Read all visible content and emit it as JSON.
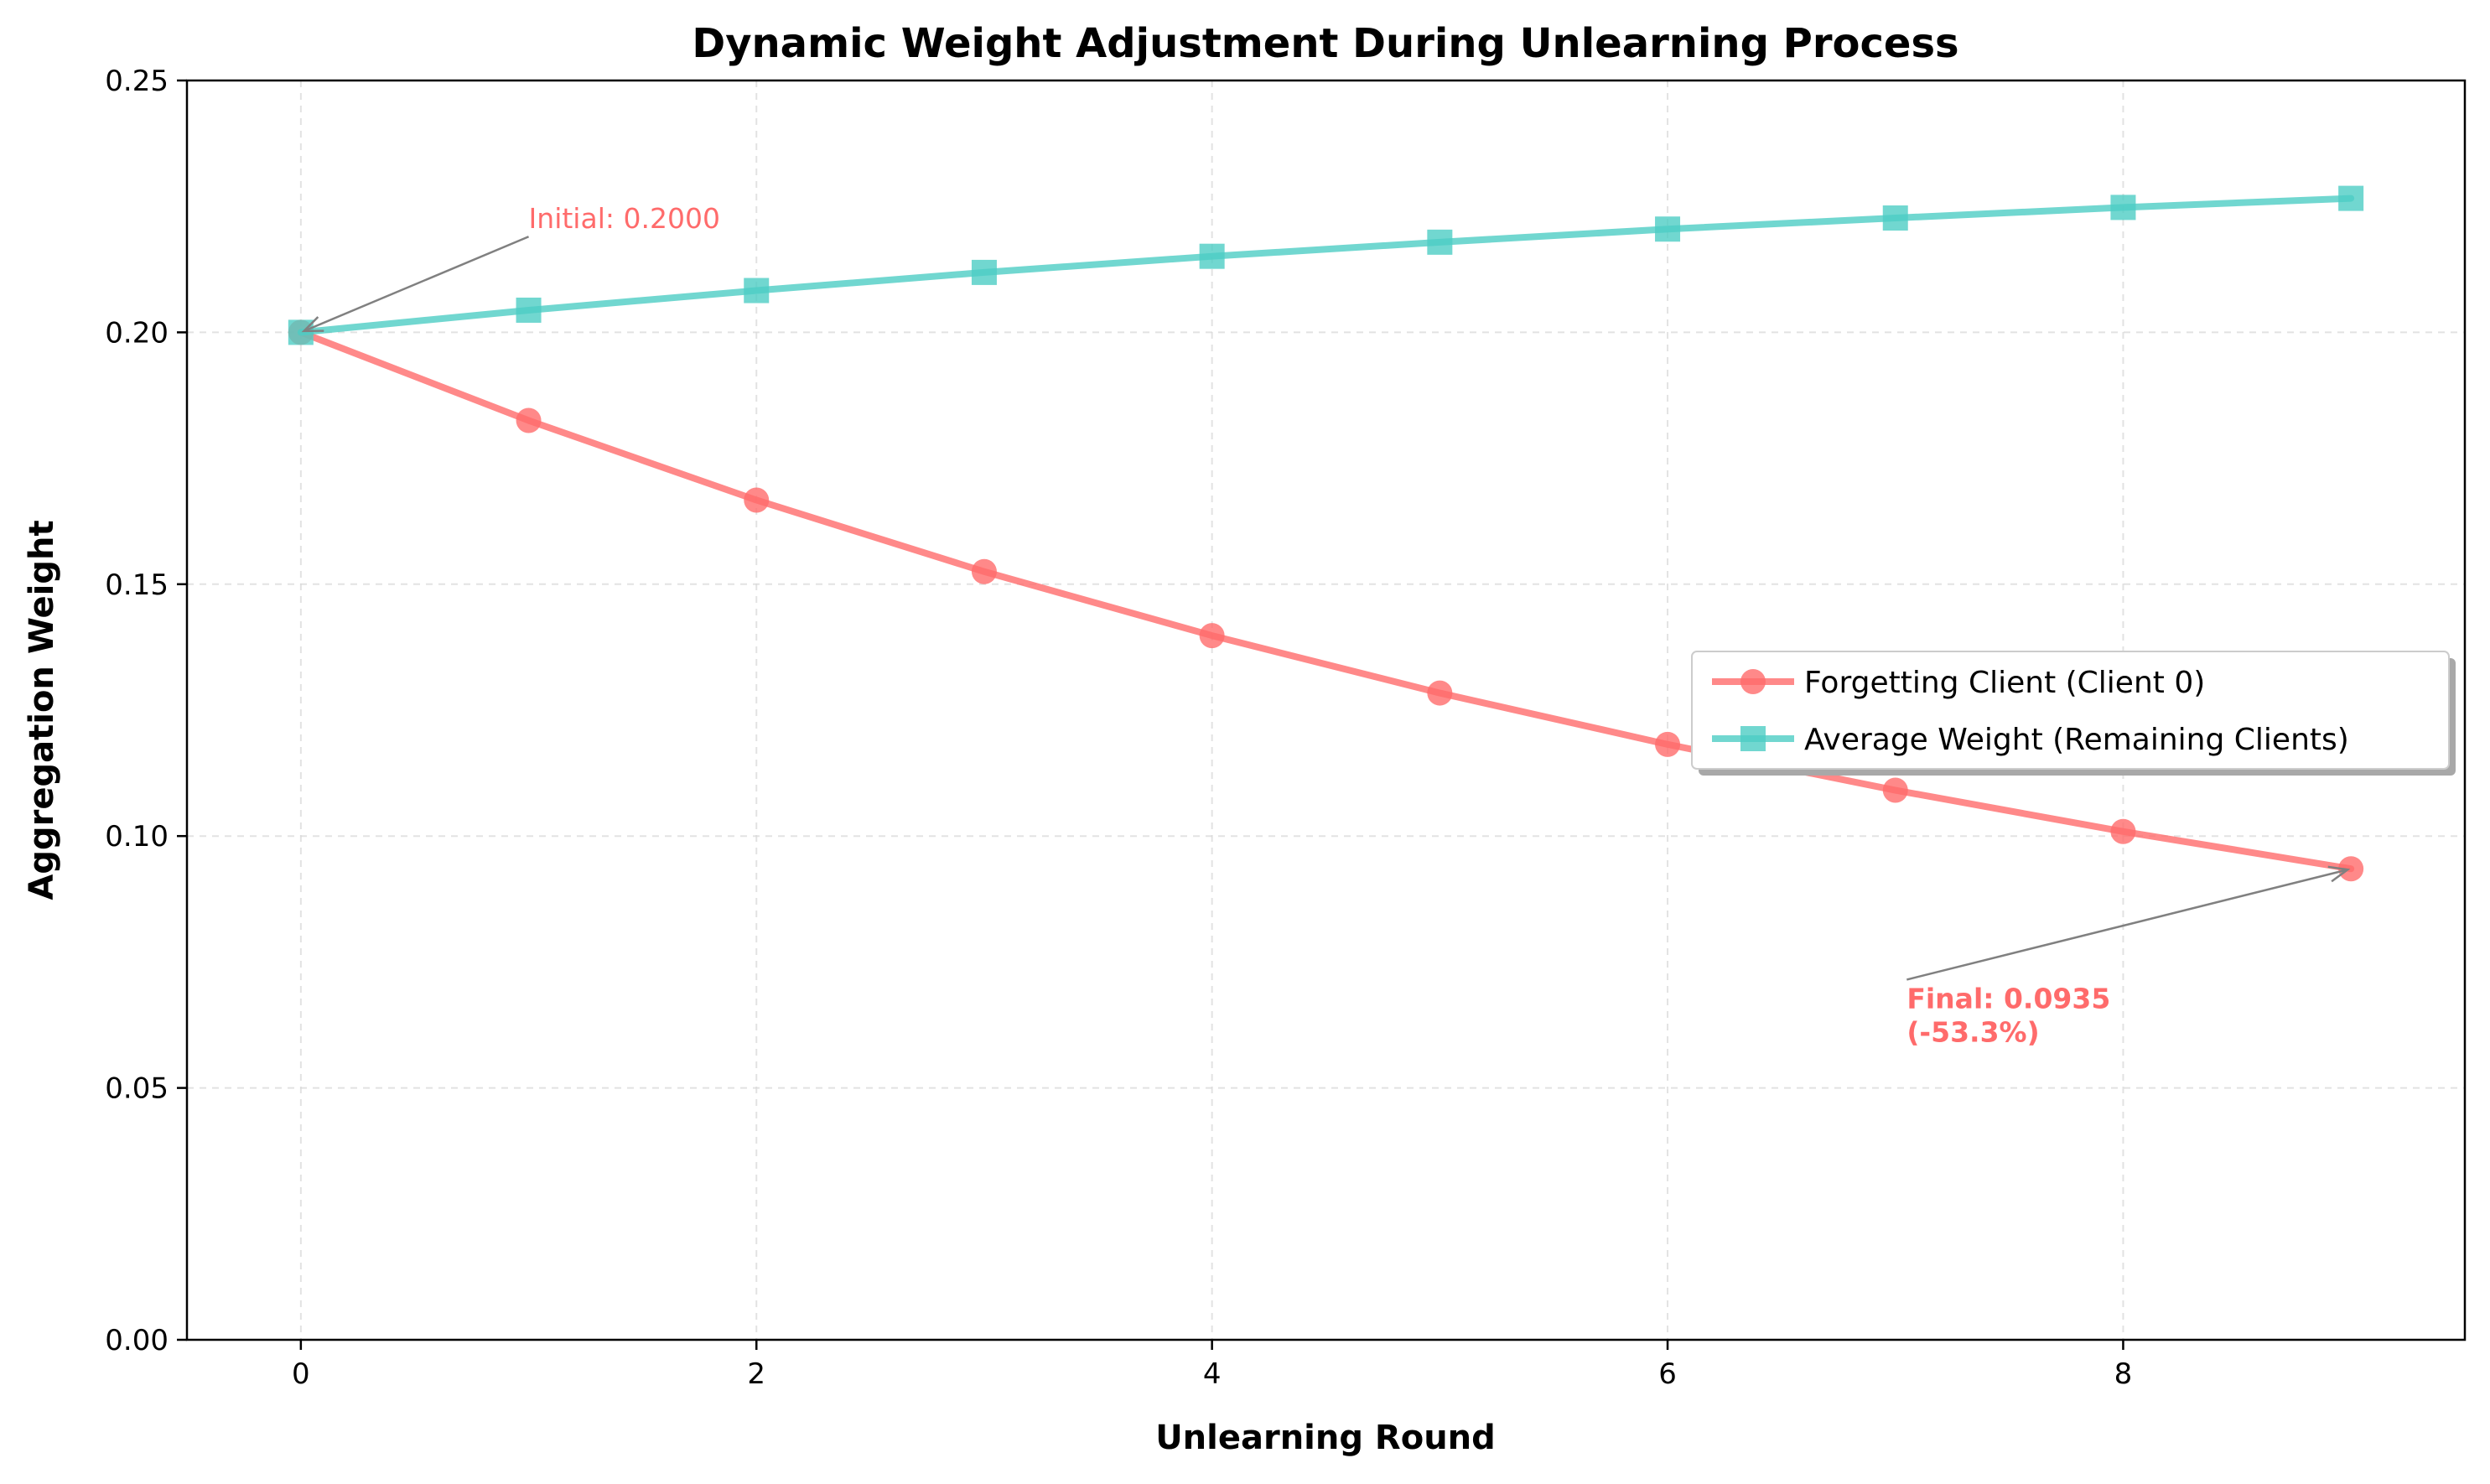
{
  "chart_data": {
    "type": "line",
    "title": "Dynamic Weight Adjustment During Unlearning Process",
    "xlabel": "Unlearning Round",
    "ylabel": "Aggregation Weight",
    "xlim": [
      -0.5,
      9.5
    ],
    "ylim": [
      0,
      0.25
    ],
    "x_ticks": [
      0,
      2,
      4,
      6,
      8
    ],
    "x_tick_labels": [
      "0",
      "2",
      "4",
      "6",
      "8"
    ],
    "y_ticks": [
      0,
      0.05,
      0.1,
      0.15,
      0.2,
      0.25
    ],
    "y_tick_labels": [
      "0.00",
      "0.05",
      "0.10",
      "0.15",
      "0.20",
      "0.25"
    ],
    "grid": true,
    "legend_position": "center-right",
    "x": [
      0,
      1,
      2,
      3,
      4,
      5,
      6,
      7,
      8,
      9
    ],
    "series": [
      {
        "name": "Forgetting Client (Client 0)",
        "color": "#FF6B6B",
        "marker": "circle",
        "values": [
          0.2,
          0.1825,
          0.1667,
          0.1525,
          0.1398,
          0.1284,
          0.1182,
          0.1091,
          0.1009,
          0.0935
        ]
      },
      {
        "name": "Average Weight (Remaining Clients)",
        "color": "#4ECDC4",
        "marker": "square",
        "values": [
          0.2,
          0.2044,
          0.2083,
          0.2119,
          0.2151,
          0.2179,
          0.2205,
          0.2227,
          0.2248,
          0.2266
        ]
      }
    ],
    "annotations": [
      {
        "lines": [
          "Initial: 0.2000"
        ],
        "point": [
          0,
          0.2
        ],
        "text_pos": [
          1.0,
          0.219
        ],
        "color": "#FF6B6B",
        "bold": false
      },
      {
        "lines": [
          "Final: 0.0935",
          "(-53.3%)"
        ],
        "point": [
          9,
          0.0935
        ],
        "text_pos": [
          7.05,
          0.0715
        ],
        "color": "#FF6B6B",
        "bold": true
      }
    ]
  }
}
